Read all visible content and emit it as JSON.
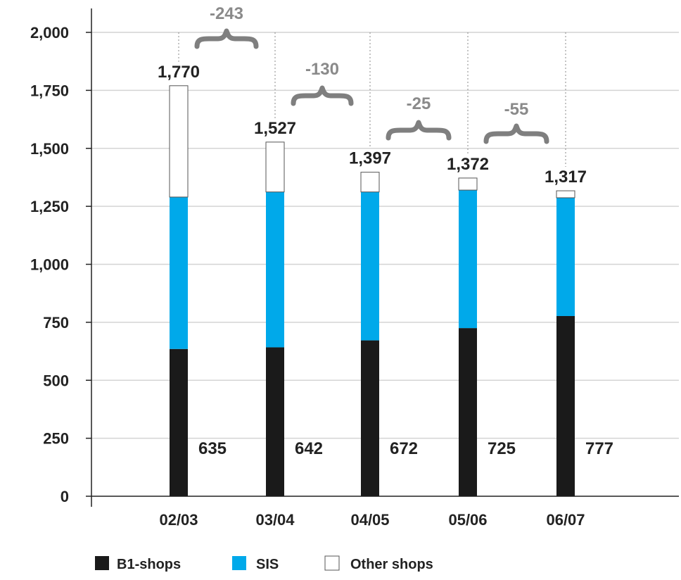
{
  "chart_data": {
    "type": "bar",
    "stacked": true,
    "categories": [
      "02/03",
      "03/04",
      "04/05",
      "05/06",
      "06/07"
    ],
    "series": [
      {
        "name": "B1-shops",
        "values": [
          635,
          642,
          672,
          725,
          777
        ],
        "color": "#1a1a1a"
      },
      {
        "name": "SIS",
        "values": [
          655,
          670,
          640,
          595,
          510
        ],
        "color": "#00a9ea"
      },
      {
        "name": "Other shops",
        "values": [
          480,
          215,
          85,
          52,
          30
        ],
        "color": "#ffffff"
      }
    ],
    "totals": [
      1770,
      1527,
      1397,
      1372,
      1317
    ],
    "total_labels": [
      "1,770",
      "1,527",
      "1,397",
      "1,372",
      "1,317"
    ],
    "base_labels": [
      "635",
      "642",
      "672",
      "725",
      "777"
    ],
    "differences": [
      "-243",
      "-130",
      "-25",
      "-55"
    ],
    "ylim": [
      0,
      2000
    ],
    "yticks": [
      0,
      250,
      500,
      750,
      1000,
      1250,
      1500,
      1750,
      2000
    ],
    "ytick_labels": [
      "0",
      "250",
      "500",
      "750",
      "1,000",
      "1,250",
      "1,500",
      "1,750",
      "2,000"
    ],
    "grid": true,
    "legend_position": "bottom-left",
    "title": "",
    "xlabel": "",
    "ylabel": ""
  }
}
